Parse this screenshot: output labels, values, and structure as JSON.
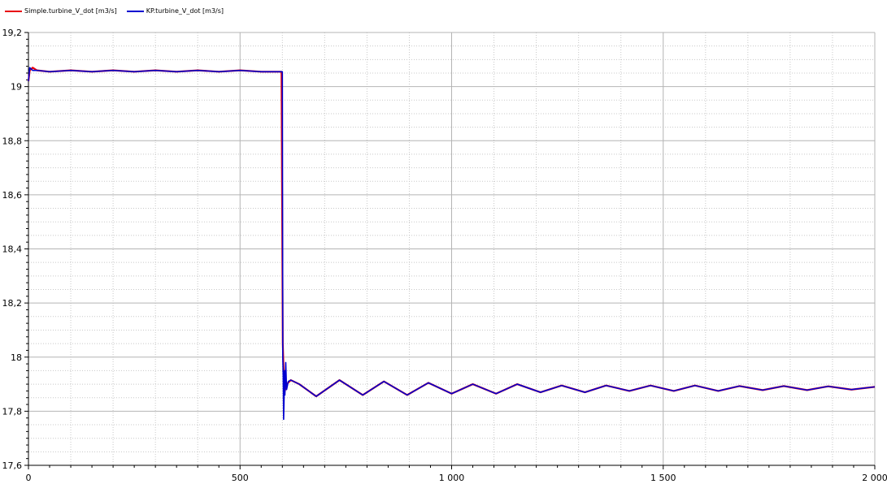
{
  "chart_data": {
    "type": "line",
    "title": "",
    "xlabel": "",
    "ylabel": "",
    "xlim": [
      0,
      2000
    ],
    "ylim": [
      17.6,
      19.2
    ],
    "grid": true,
    "legend_position": "top-left",
    "x_ticks": [
      0,
      500,
      1000,
      1500,
      2000
    ],
    "x_tick_labels": [
      "0",
      "500",
      "1 000",
      "1 500",
      "2 000"
    ],
    "y_ticks": [
      17.6,
      17.8,
      18.0,
      18.2,
      18.4,
      18.6,
      18.8,
      19.0,
      19.2
    ],
    "y_tick_labels": [
      "17,6",
      "17,8",
      "18",
      "18,2",
      "18,4",
      "18,6",
      "18,8",
      "19",
      "19,2"
    ],
    "series": [
      {
        "name": "Simple.turbine_V_dot [m3/s]",
        "color": "#e8000b",
        "x": [
          0,
          3,
          10,
          20,
          50,
          100,
          150,
          200,
          250,
          300,
          350,
          400,
          450,
          500,
          550,
          598,
          601,
          603,
          605,
          610,
          620,
          640,
          680,
          735,
          790,
          840,
          895,
          945,
          1000,
          1050,
          1105,
          1155,
          1210,
          1260,
          1315,
          1365,
          1420,
          1470,
          1525,
          1575,
          1630,
          1680,
          1735,
          1785,
          1840,
          1890,
          1945,
          2000
        ],
        "y": [
          19.02,
          19.06,
          19.07,
          19.06,
          19.055,
          19.06,
          19.055,
          19.06,
          19.055,
          19.06,
          19.055,
          19.06,
          19.055,
          19.06,
          19.055,
          19.055,
          18.05,
          17.95,
          17.87,
          17.9,
          17.915,
          17.9,
          17.855,
          17.915,
          17.86,
          17.91,
          17.86,
          17.905,
          17.865,
          17.9,
          17.865,
          17.9,
          17.87,
          17.895,
          17.87,
          17.895,
          17.875,
          17.895,
          17.875,
          17.895,
          17.875,
          17.893,
          17.878,
          17.893,
          17.878,
          17.892,
          17.88,
          17.89
        ]
      },
      {
        "name": "KP.turbine_V_dot [m3/s]",
        "color": "#0000d0",
        "x": [
          0,
          3,
          10,
          20,
          50,
          100,
          150,
          200,
          250,
          300,
          350,
          400,
          450,
          500,
          550,
          598,
          600,
          601,
          602,
          603,
          604,
          605,
          606,
          608,
          610,
          614,
          620,
          640,
          680,
          735,
          790,
          840,
          895,
          945,
          1000,
          1050,
          1105,
          1155,
          1210,
          1260,
          1315,
          1365,
          1420,
          1470,
          1525,
          1575,
          1630,
          1680,
          1735,
          1785,
          1840,
          1890,
          1945,
          2000
        ],
        "y": [
          19.02,
          19.07,
          19.06,
          19.06,
          19.055,
          19.06,
          19.055,
          19.06,
          19.055,
          19.06,
          19.055,
          19.06,
          19.055,
          19.06,
          19.055,
          19.055,
          19.055,
          18.0,
          17.93,
          17.77,
          17.84,
          17.95,
          17.86,
          17.98,
          17.88,
          17.91,
          17.915,
          17.9,
          17.855,
          17.915,
          17.86,
          17.91,
          17.86,
          17.905,
          17.865,
          17.9,
          17.865,
          17.9,
          17.87,
          17.895,
          17.87,
          17.895,
          17.875,
          17.895,
          17.875,
          17.895,
          17.875,
          17.893,
          17.878,
          17.893,
          17.878,
          17.892,
          17.88,
          17.89
        ]
      }
    ]
  }
}
